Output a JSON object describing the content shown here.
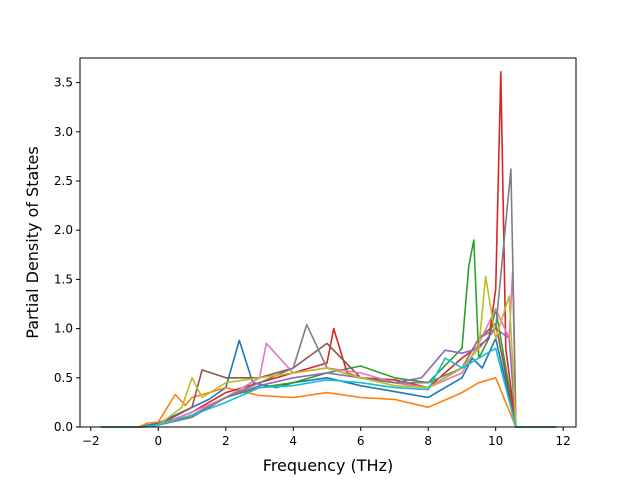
{
  "chart_data": {
    "type": "line",
    "title": "",
    "xlabel": "Frequency (THz)",
    "ylabel": "Partial Density of States",
    "xlim": [
      -2.32,
      12.38
    ],
    "ylim": [
      0,
      3.75
    ],
    "xticks": [
      -2,
      0,
      2,
      4,
      6,
      8,
      10,
      12
    ],
    "yticks": [
      0.0,
      0.5,
      1.0,
      1.5,
      2.0,
      2.5,
      3.0,
      3.5
    ],
    "xtick_labels": [
      "−2",
      "0",
      "2",
      "4",
      "6",
      "8",
      "10",
      "12"
    ],
    "ytick_labels": [
      "0.0",
      "0.5",
      "1.0",
      "1.5",
      "2.0",
      "2.5",
      "3.0",
      "3.5"
    ],
    "grid": false,
    "legend": "none",
    "palette": [
      "#1f77b4",
      "#ff7f0e",
      "#2ca02c",
      "#d62728",
      "#9467bd",
      "#8c564b",
      "#e377c2",
      "#7f7f7f",
      "#bcbd22",
      "#17becf"
    ],
    "series": [
      {
        "color": "#1f77b4",
        "x": [
          -1.7,
          -0.6,
          0,
          0.5,
          1,
          1.5,
          2,
          2.4,
          2.8,
          3.5,
          4,
          5,
          6,
          7,
          8,
          8.5,
          9,
          9.3,
          9.6,
          10,
          10.6,
          11.8
        ],
        "y": [
          0,
          0,
          0.04,
          0.12,
          0.2,
          0.28,
          0.4,
          0.88,
          0.45,
          0.4,
          0.45,
          0.5,
          0.42,
          0.36,
          0.3,
          0.4,
          0.5,
          0.7,
          0.6,
          0.9,
          0,
          0
        ]
      },
      {
        "color": "#ff7f0e",
        "x": [
          -1.7,
          -0.6,
          -0.3,
          0,
          0.5,
          0.8,
          1,
          1.5,
          2,
          3,
          4,
          5,
          6,
          7,
          8,
          9,
          9.5,
          10,
          10.6,
          11.8
        ],
        "y": [
          0,
          0,
          0.04,
          0.05,
          0.33,
          0.22,
          0.3,
          0.35,
          0.4,
          0.32,
          0.3,
          0.35,
          0.3,
          0.28,
          0.2,
          0.35,
          0.45,
          0.5,
          0,
          0
        ]
      },
      {
        "color": "#2ca02c",
        "x": [
          -1.7,
          -0.5,
          0,
          1,
          2,
          3,
          4,
          5,
          6,
          7,
          8,
          9,
          9.2,
          9.35,
          9.5,
          9.8,
          10,
          10.6,
          11.8
        ],
        "y": [
          0,
          0,
          0.02,
          0.1,
          0.3,
          0.4,
          0.45,
          0.55,
          0.62,
          0.5,
          0.45,
          0.8,
          1.63,
          1.9,
          0.7,
          0.9,
          1.2,
          0,
          0
        ]
      },
      {
        "color": "#d62728",
        "x": [
          -1.7,
          -0.5,
          0,
          1,
          2,
          3,
          4,
          5,
          5.2,
          5.6,
          6,
          7,
          8,
          9,
          9.8,
          10,
          10.15,
          10.3,
          10.6,
          11.8
        ],
        "y": [
          0,
          0,
          0.02,
          0.15,
          0.35,
          0.45,
          0.55,
          0.65,
          1.0,
          0.55,
          0.5,
          0.48,
          0.4,
          0.7,
          0.9,
          1.4,
          3.61,
          0.8,
          0,
          0
        ]
      },
      {
        "color": "#9467bd",
        "x": [
          -1.7,
          -0.4,
          0,
          1,
          2,
          3,
          4,
          5,
          6,
          7,
          7.8,
          8.5,
          9,
          9.5,
          10,
          10.4,
          10.6,
          11.8
        ],
        "y": [
          0,
          0,
          0.02,
          0.12,
          0.3,
          0.42,
          0.5,
          0.55,
          0.5,
          0.45,
          0.5,
          0.78,
          0.75,
          0.8,
          1.0,
          0.9,
          0,
          0
        ]
      },
      {
        "color": "#8c564b",
        "x": [
          -1.7,
          -0.5,
          0,
          1,
          1.3,
          2,
          3,
          4,
          5,
          6,
          7,
          8,
          9,
          9.5,
          10,
          10.6,
          11.8
        ],
        "y": [
          0,
          0,
          0.02,
          0.2,
          0.58,
          0.5,
          0.5,
          0.6,
          0.85,
          0.5,
          0.45,
          0.4,
          0.6,
          0.9,
          1.05,
          0,
          0
        ]
      },
      {
        "color": "#e377c2",
        "x": [
          -1.7,
          -0.5,
          0,
          1,
          2,
          3,
          3.2,
          4,
          5,
          6,
          7,
          8,
          9,
          9.5,
          10,
          10.4,
          10.5,
          10.6,
          11.8
        ],
        "y": [
          0,
          0,
          0.02,
          0.15,
          0.3,
          0.5,
          0.85,
          0.55,
          0.6,
          0.55,
          0.45,
          0.4,
          0.55,
          0.85,
          1.2,
          0.9,
          1.58,
          0,
          0
        ]
      },
      {
        "color": "#7f7f7f",
        "x": [
          -1.7,
          -0.5,
          0,
          1,
          2,
          3,
          4,
          4.4,
          5,
          6,
          7,
          8,
          9,
          9.5,
          10,
          10.45,
          10.55,
          10.6,
          11.8
        ],
        "y": [
          0,
          0,
          0.02,
          0.1,
          0.3,
          0.45,
          0.6,
          1.04,
          0.6,
          0.5,
          0.45,
          0.45,
          0.6,
          0.9,
          1.0,
          2.62,
          0.9,
          0,
          0
        ]
      },
      {
        "color": "#bcbd22",
        "x": [
          -1.7,
          -0.5,
          0,
          0.7,
          1,
          1.3,
          2,
          3,
          4,
          5,
          6,
          7,
          8,
          9,
          9.5,
          9.7,
          10,
          10.4,
          10.6,
          11.8
        ],
        "y": [
          0,
          0,
          0.02,
          0.2,
          0.5,
          0.3,
          0.45,
          0.5,
          0.55,
          0.6,
          0.5,
          0.42,
          0.4,
          0.6,
          0.8,
          1.53,
          0.9,
          1.33,
          0,
          0
        ]
      },
      {
        "color": "#17becf",
        "x": [
          -1.7,
          -0.5,
          0,
          1,
          2,
          3,
          4,
          5,
          6,
          7,
          8,
          8.5,
          9,
          9.5,
          10,
          10.6,
          11.8
        ],
        "y": [
          0,
          0,
          0.02,
          0.12,
          0.25,
          0.4,
          0.42,
          0.48,
          0.45,
          0.4,
          0.38,
          0.7,
          0.6,
          0.7,
          0.8,
          0,
          0
        ]
      }
    ]
  }
}
